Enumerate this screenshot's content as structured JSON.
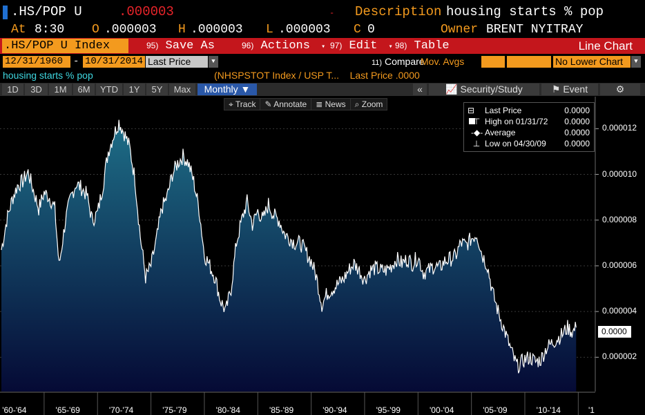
{
  "header": {
    "ticker": ".HS/POP U",
    "price": ".000003",
    "change": "-",
    "description_label": "Description",
    "description": "housing starts % pop",
    "at_label": "At",
    "time": "8:30",
    "open_label": "O",
    "open": ".000003",
    "high_label": "H",
    "high": ".000003",
    "low_label": "L",
    "low": ".000003",
    "close_label": "C",
    "close": "0",
    "owner_label": "Owner",
    "owner": "BRENT NYITRAY"
  },
  "toolbar": {
    "index": ".HS/POP U Index",
    "buttons": [
      {
        "num": "95)",
        "label": "Save As",
        "arrow": ""
      },
      {
        "num": "96)",
        "label": "Actions",
        "arrow": "▾"
      },
      {
        "num": "97)",
        "label": "Edit",
        "arrow": "▾"
      },
      {
        "num": "98)",
        "label": "Table",
        "arrow": ""
      }
    ],
    "chart_type": "Line Chart"
  },
  "daterange": {
    "start": "12/31/1960",
    "end": "10/31/2014",
    "sep": "-",
    "field": "Last Price",
    "compare_num": "11)",
    "compare_label": "Compare",
    "mov_avgs": "Mov. Avgs",
    "lower_chart": "No Lower Chart"
  },
  "info": {
    "series": "housing starts % pop",
    "source": "(NHSPSTOT Index / USP T...",
    "last_price": "Last Price .0000"
  },
  "periods": [
    "1D",
    "3D",
    "1M",
    "6M",
    "YTD",
    "1Y",
    "5Y",
    "Max"
  ],
  "frequency": "Monthly ▼",
  "right_buttons": {
    "collapse": "«",
    "security_study": "Security/Study",
    "event": "Event",
    "settings": "⚙"
  },
  "chart_tools": [
    "Track",
    "Annotate",
    "News",
    "Zoom"
  ],
  "legend": [
    {
      "label": "Last Price",
      "value": "0.0000"
    },
    {
      "label": "High on 01/31/72",
      "value": "0.0000"
    },
    {
      "label": "Average",
      "value": "0.0000"
    },
    {
      "label": "Low on 04/30/09",
      "value": "0.0000"
    }
  ],
  "last_badge": "0.0000",
  "colors": {
    "accent_orange": "#f39a1e",
    "toolbar_red": "#c4161c",
    "price_red": "#e8242a",
    "series_line": "#ffffff",
    "area_top": "#1e6f88",
    "area_bottom": "#050a35"
  },
  "chart_data": {
    "type": "area",
    "y_ticks": [
      "0.000012",
      "0.000010",
      "0.000008",
      "0.000006",
      "0.000004",
      "0.000002"
    ],
    "x_ticks": [
      "'60-'64",
      "'65-'69",
      "'70-'74",
      "'75-'79",
      "'80-'84",
      "'85-'89",
      "'90-'94",
      "'95-'99",
      "'00-'04",
      "'05-'09",
      "'10-'14",
      "'1"
    ],
    "ylim": [
      5e-07,
      1.34e-05
    ],
    "xlim": [
      1961.0,
      2015.3
    ],
    "series": [
      {
        "x": [
          1961.0,
          1961.5,
          1962.0,
          1962.5,
          1963.0,
          1963.5,
          1964.0,
          1964.5,
          1965.0,
          1965.5,
          1966.0,
          1966.4,
          1967.0,
          1967.5,
          1968.0,
          1968.5,
          1969.0,
          1969.5,
          1970.0,
          1970.5,
          1971.0,
          1971.5,
          1972.0,
          1972.5,
          1973.0,
          1973.5,
          1974.0,
          1974.5,
          1975.0,
          1975.5,
          1976.0,
          1976.5,
          1977.0,
          1977.5,
          1978.0,
          1978.5,
          1979.0,
          1979.5,
          1980.0,
          1980.5,
          1981.0,
          1981.5,
          1982.0,
          1982.5,
          1983.0,
          1983.5,
          1984.0,
          1984.5,
          1985.0,
          1985.5,
          1986.0,
          1986.5,
          1987.0,
          1987.5,
          1988.0,
          1988.5,
          1989.0,
          1989.5,
          1990.0,
          1990.5,
          1991.0,
          1991.5,
          1992.0,
          1992.5,
          1993.0,
          1993.5,
          1994.0,
          1994.5,
          1995.0,
          1995.5,
          1996.0,
          1996.5,
          1997.0,
          1997.5,
          1998.0,
          1998.5,
          1999.0,
          1999.5,
          2000.0,
          2000.5,
          2001.0,
          2001.5,
          2002.0,
          2002.5,
          2003.0,
          2003.5,
          2004.0,
          2004.5,
          2005.0,
          2005.5,
          2006.0,
          2006.5,
          2007.0,
          2007.5,
          2008.0,
          2008.5,
          2009.0,
          2009.3,
          2009.5,
          2010.0,
          2010.5,
          2011.0,
          2011.5,
          2012.0,
          2012.5,
          2013.0,
          2013.5,
          2014.0,
          2014.5,
          2014.8
        ],
        "y": [
          6.7e-06,
          8e-06,
          8.9e-06,
          9.5e-06,
          9.7e-06,
          1.01e-05,
          9.3e-06,
          8.5e-06,
          9.2e-06,
          9e-06,
          8.5e-06,
          6e-06,
          8e-06,
          9e-06,
          9.6e-06,
          9.4e-06,
          9.1e-06,
          8e-06,
          8.3e-06,
          9.5e-06,
          1.1e-05,
          1.17e-05,
          1.23e-05,
          1.18e-05,
          1.12e-05,
          9.8e-06,
          7.3e-06,
          5.5e-06,
          6e-06,
          7.1e-06,
          8.5e-06,
          9e-06,
          1e-05,
          1.05e-05,
          1.08e-05,
          1.05e-05,
          9.7e-06,
          8.5e-06,
          6.5e-06,
          6e-06,
          5.5e-06,
          4.5e-06,
          4e-06,
          5e-06,
          7e-06,
          8e-06,
          8.8e-06,
          7.8e-06,
          8.4e-06,
          8e-06,
          8.7e-06,
          8.2e-06,
          8e-06,
          7.4e-06,
          7.2e-06,
          7e-06,
          7e-06,
          6.6e-06,
          6.2e-06,
          5.5e-06,
          4.3e-06,
          4.8e-06,
          5e-06,
          5.2e-06,
          5.4e-06,
          5.8e-06,
          6.1e-06,
          5.8e-06,
          5.4e-06,
          5.8e-06,
          5.9e-06,
          5.8e-06,
          5.8e-06,
          6e-06,
          6.3e-06,
          6.1e-06,
          6.3e-06,
          6.1e-06,
          6.4e-06,
          5.7e-06,
          5.8e-06,
          6e-06,
          5.9e-06,
          6.2e-06,
          6.3e-06,
          6.4e-06,
          7e-06,
          6.9e-06,
          7.2e-06,
          7.4e-06,
          6.5e-06,
          6e-06,
          4.8e-06,
          4e-06,
          3.3e-06,
          2.6e-06,
          1.9e-06,
          1.6e-06,
          1.7e-06,
          1.9e-06,
          2e-06,
          1.8e-06,
          1.9e-06,
          2.4e-06,
          2.6e-06,
          2.8e-06,
          3e-06,
          3.3e-06,
          3.1e-06,
          3.3e-06
        ]
      }
    ]
  }
}
